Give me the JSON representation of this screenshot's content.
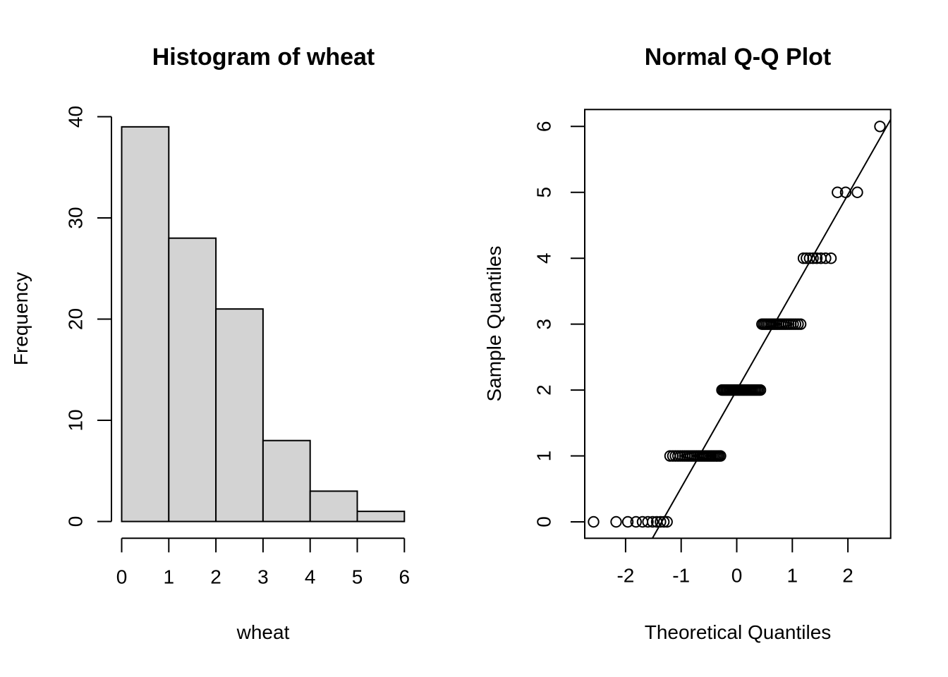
{
  "figure": {
    "background": "#ffffff",
    "foreground": "#000000",
    "bar_fill": "#d3d3d3"
  },
  "chart_data": [
    {
      "type": "bar",
      "title": "Histogram of wheat",
      "xlabel": "wheat",
      "ylabel": "Frequency",
      "categories": [
        "0-1",
        "1-2",
        "2-3",
        "3-4",
        "4-5",
        "5-6"
      ],
      "values": [
        39,
        28,
        21,
        8,
        3,
        1
      ],
      "xlim": [
        0,
        6
      ],
      "ylim": [
        0,
        40
      ],
      "x_ticks": [
        0,
        1,
        2,
        3,
        4,
        5,
        6
      ],
      "y_ticks": [
        0,
        10,
        20,
        30,
        40
      ],
      "grid": "off",
      "bar_fill": "#d3d3d3",
      "bar_stroke": "#000000"
    },
    {
      "type": "scatter",
      "title": "Normal Q-Q Plot",
      "xlabel": "Theoretical Quantiles",
      "ylabel": "Sample Quantiles",
      "xlim": [
        -2.78,
        2.78
      ],
      "ylim": [
        -0.25,
        6.25
      ],
      "x_ticks": [
        -2,
        -1,
        0,
        1,
        2
      ],
      "y_ticks": [
        0,
        1,
        2,
        3,
        4,
        5,
        6
      ],
      "grid": "off",
      "marker": "open-circle",
      "groups": [
        {
          "y": 0,
          "x": [
            -2.576,
            -2.17,
            -1.96,
            -1.812,
            -1.695,
            -1.598,
            -1.514,
            -1.44,
            -1.372,
            -1.311,
            -1.254
          ]
        },
        {
          "y": 1,
          "x": [
            -1.2,
            -1.15,
            -1.103,
            -1.058,
            -1.015,
            -0.974,
            -0.935,
            -0.896,
            -0.86,
            -0.824,
            -0.789,
            -0.755,
            -0.722,
            -0.69,
            -0.659,
            -0.628,
            -0.598,
            -0.568,
            -0.539,
            -0.51,
            -0.482,
            -0.454,
            -0.426,
            -0.399,
            -0.372,
            -0.345,
            -0.319,
            -0.292
          ]
        },
        {
          "y": 2,
          "x": [
            -0.266,
            -0.24,
            -0.215,
            -0.189,
            -0.164,
            -0.138,
            -0.113,
            -0.088,
            -0.063,
            -0.038,
            -0.013,
            0.013,
            0.038,
            0.063,
            0.088,
            0.113,
            0.138,
            0.164,
            0.189,
            0.215,
            0.24,
            0.266,
            0.292,
            0.319,
            0.345,
            0.372,
            0.399,
            0.426
          ]
        },
        {
          "y": 3,
          "x": [
            0.454,
            0.482,
            0.51,
            0.539,
            0.568,
            0.598,
            0.628,
            0.659,
            0.69,
            0.722,
            0.755,
            0.789,
            0.824,
            0.86,
            0.896,
            0.935,
            0.974,
            1.015,
            1.058,
            1.103,
            1.15
          ]
        },
        {
          "y": 4,
          "x": [
            1.2,
            1.254,
            1.311,
            1.372,
            1.44,
            1.514,
            1.598,
            1.695
          ]
        },
        {
          "y": 5,
          "x": [
            1.812,
            1.96,
            2.17
          ]
        },
        {
          "y": 6,
          "x": [
            2.576
          ]
        }
      ],
      "reference_line": {
        "slope": 1.4826,
        "intercept": 2
      }
    }
  ]
}
